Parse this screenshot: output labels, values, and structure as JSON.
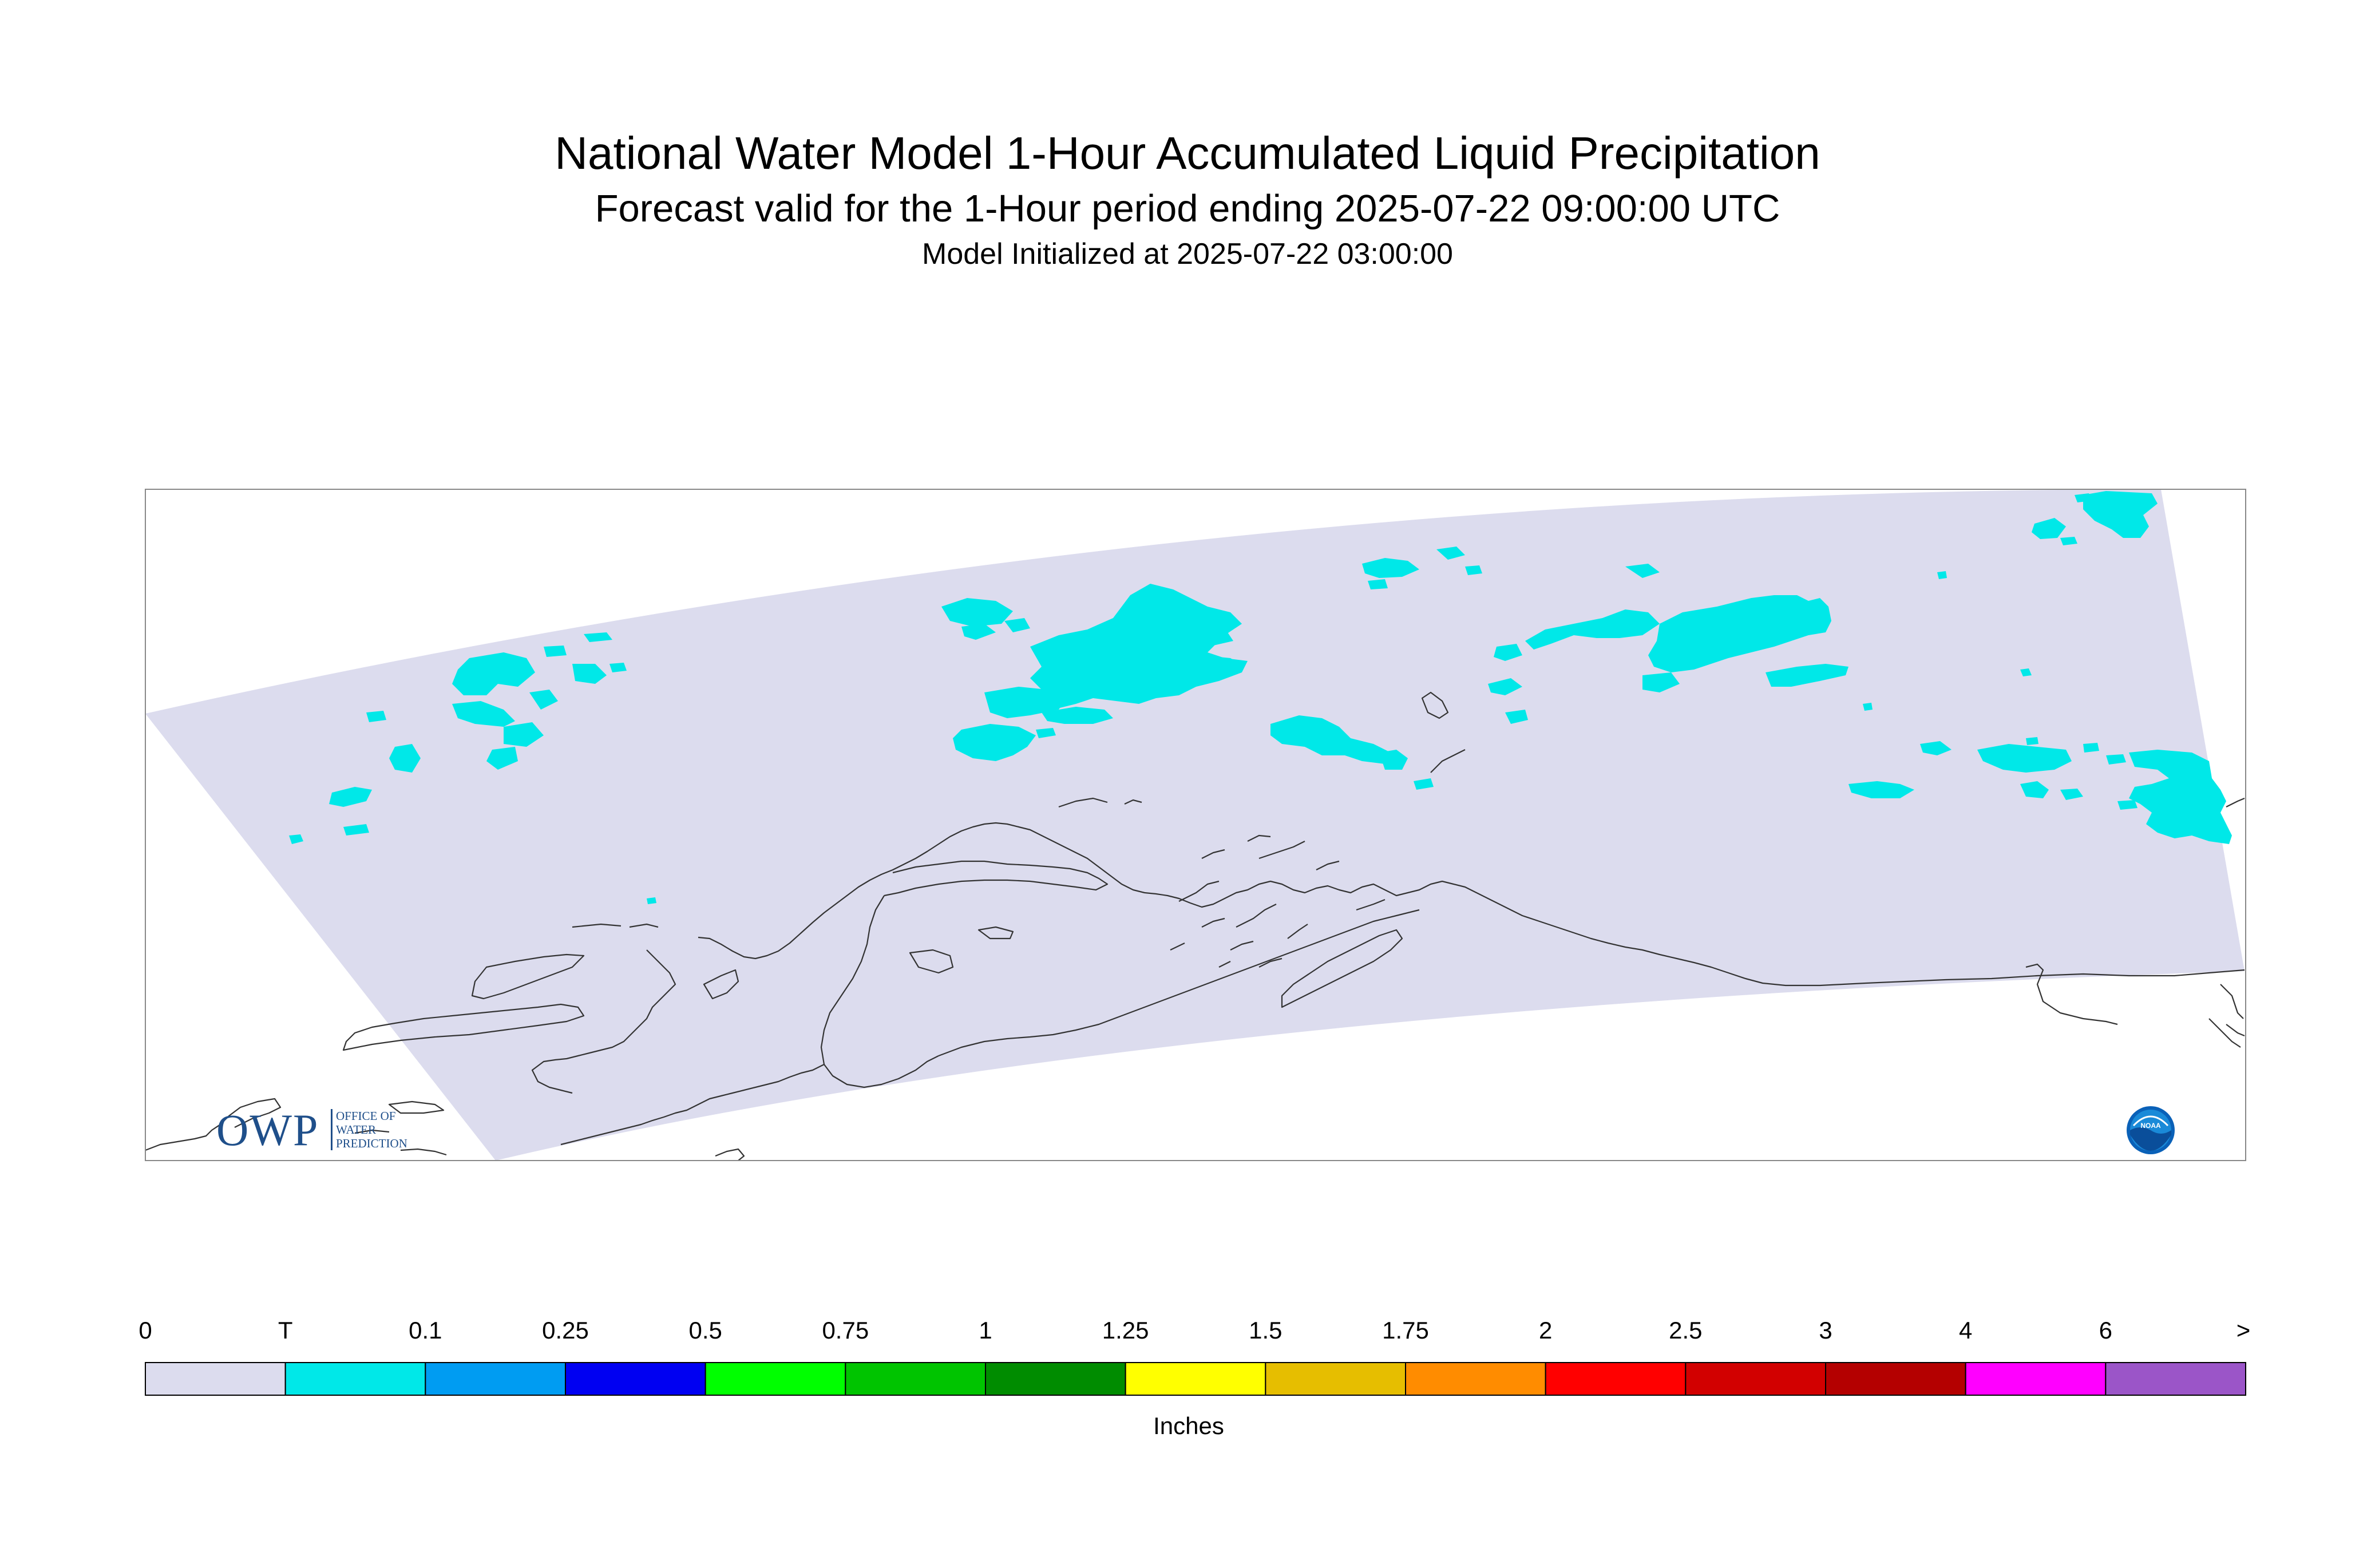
{
  "title": {
    "line1": "National Water Model 1-Hour Accumulated Liquid Precipitation",
    "line2": "Forecast valid for the 1-Hour period ending 2025-07-22 09:00:00 UTC",
    "line3": "Model Initialized at 2025-07-22 03:00:00"
  },
  "map": {
    "domain_fill_color": "#dcdcee",
    "trace_precip_color": "#00e8e8",
    "coastline_color": "#333333"
  },
  "logos": {
    "owp": {
      "big": "OWP",
      "small": [
        "OFFICE OF",
        "WATER",
        "PREDICTION"
      ]
    },
    "noaa": "NOAA"
  },
  "legend": {
    "unit": "Inches",
    "boundaries": [
      "0",
      "T",
      "0.1",
      "0.25",
      "0.5",
      "0.75",
      "1",
      "1.25",
      "1.5",
      "1.75",
      "2",
      "2.5",
      "3",
      "4",
      "6",
      ">"
    ],
    "colors": [
      "#dcdcee",
      "#00e8e8",
      "#009cf2",
      "#0000f2",
      "#00ff00",
      "#00c400",
      "#008c00",
      "#ffff00",
      "#e6be00",
      "#ff8c00",
      "#ff0000",
      "#d20000",
      "#b40000",
      "#ff00ff",
      "#9b55c8"
    ]
  }
}
